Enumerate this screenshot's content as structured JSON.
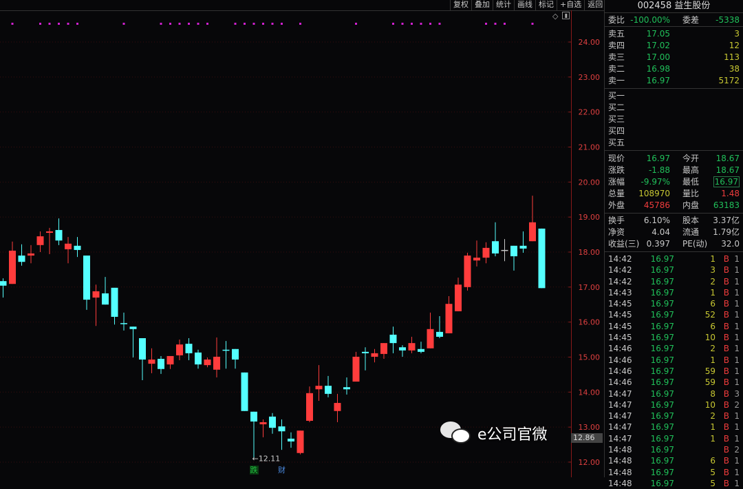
{
  "toolbar": {
    "items": [
      "复权",
      "叠加",
      "统计",
      "画线",
      "标记",
      "+自选",
      "返回"
    ]
  },
  "chart_data": {
    "type": "candlestick",
    "y_ticks": [
      "24.00",
      "23.00",
      "22.00",
      "21.00",
      "20.00",
      "19.00",
      "18.00",
      "17.00",
      "16.00",
      "15.00",
      "14.00",
      "13.00",
      "12.00"
    ],
    "ylim": [
      12,
      24
    ],
    "grid": true,
    "colors": {
      "up": "#ff3c3c",
      "down": "#54ffff",
      "flat": "#c8c8c8",
      "marker": "#d020d0",
      "axis": "#8a1a1a"
    },
    "candles": [
      [
        17.17,
        17.25,
        16.7,
        17.04
      ],
      [
        17.09,
        18.3,
        17.09,
        18.04
      ],
      [
        17.9,
        18.22,
        17.61,
        17.72
      ],
      [
        17.9,
        18.2,
        17.68,
        17.96
      ],
      [
        18.2,
        18.59,
        18.0,
        18.45
      ],
      [
        18.55,
        18.69,
        17.94,
        18.59
      ],
      [
        18.63,
        18.96,
        18.2,
        18.33
      ],
      [
        18.08,
        18.43,
        17.68,
        18.24
      ],
      [
        18.18,
        18.43,
        17.86,
        18.06
      ],
      [
        17.9,
        17.9,
        16.35,
        16.64
      ],
      [
        16.7,
        17.07,
        15.89,
        16.88
      ],
      [
        16.82,
        17.29,
        16.5,
        16.5
      ],
      [
        16.98,
        16.98,
        15.93,
        16.15
      ],
      [
        15.97,
        16.27,
        15.76,
        15.96
      ],
      [
        15.87,
        15.87,
        14.99,
        15.8
      ],
      [
        15.54,
        15.54,
        14.34,
        14.93
      ],
      [
        14.81,
        15.25,
        14.54,
        14.93
      ],
      [
        14.95,
        15.03,
        14.52,
        14.66
      ],
      [
        14.79,
        15.03,
        14.66,
        15.03
      ],
      [
        15.05,
        15.5,
        14.91,
        15.36
      ],
      [
        15.38,
        15.54,
        14.91,
        15.11
      ],
      [
        15.13,
        15.21,
        14.67,
        14.79
      ],
      [
        14.77,
        14.99,
        14.71,
        14.93
      ],
      [
        14.64,
        15.56,
        14.42,
        15.01
      ],
      [
        15.21,
        15.46,
        14.67,
        15.2
      ],
      [
        15.23,
        15.23,
        14.67,
        14.93
      ],
      [
        14.56,
        14.56,
        13.46,
        13.46
      ],
      [
        13.44,
        13.44,
        12.11,
        13.16
      ],
      [
        13.08,
        13.22,
        12.71,
        13.14
      ],
      [
        13.3,
        13.4,
        12.81,
        12.98
      ],
      [
        13.02,
        13.22,
        12.35,
        12.88
      ],
      [
        12.67,
        12.85,
        12.41,
        12.59
      ],
      [
        12.26,
        12.9,
        12.22,
        12.9
      ],
      [
        13.18,
        14.16,
        13.14,
        13.97
      ],
      [
        14.08,
        14.77,
        13.75,
        14.18
      ],
      [
        14.18,
        14.46,
        13.85,
        13.95
      ],
      [
        13.46,
        13.95,
        13.14,
        13.69
      ],
      [
        14.14,
        14.42,
        13.93,
        14.08
      ],
      [
        14.3,
        15.15,
        14.3,
        15.01
      ],
      [
        15.15,
        15.28,
        14.62,
        15.11
      ],
      [
        15.01,
        15.23,
        14.85,
        15.11
      ],
      [
        15.09,
        15.4,
        14.95,
        15.4
      ],
      [
        15.64,
        15.87,
        15.11,
        15.4
      ],
      [
        15.28,
        15.34,
        15.01,
        15.19
      ],
      [
        15.19,
        15.58,
        15.11,
        15.4
      ],
      [
        15.23,
        15.44,
        15.11,
        15.15
      ],
      [
        15.25,
        16.27,
        15.25,
        15.8
      ],
      [
        15.72,
        16.17,
        15.54,
        15.58
      ],
      [
        15.68,
        16.74,
        15.68,
        16.52
      ],
      [
        16.31,
        17.27,
        16.31,
        17.07
      ],
      [
        17.0,
        17.98,
        16.9,
        17.9
      ],
      [
        17.76,
        18.33,
        17.59,
        17.84
      ],
      [
        17.84,
        18.28,
        17.68,
        18.12
      ],
      [
        18.31,
        18.85,
        17.88,
        17.96
      ],
      [
        18.06,
        18.37,
        17.74,
        18.06
      ],
      [
        18.18,
        18.18,
        17.47,
        17.88
      ],
      [
        18.18,
        18.59,
        17.98,
        18.1
      ],
      [
        18.31,
        19.61,
        18.31,
        18.85
      ],
      [
        18.67,
        18.67,
        16.97,
        16.97
      ]
    ],
    "marker_candles": [
      1,
      4,
      5,
      6,
      7,
      8,
      13,
      17,
      18,
      19,
      20,
      21,
      22,
      25,
      26,
      27,
      28,
      29,
      30,
      32,
      38,
      42,
      43,
      44,
      45,
      46,
      47,
      52,
      53,
      54,
      57
    ],
    "low_annotation": "←12.11",
    "last_price_tag": "12.86",
    "flags": [
      {
        "text": "跌",
        "candle": 27,
        "color": "#20c040",
        "bg": "#0b3a12"
      },
      {
        "text": "财",
        "candle": 30,
        "color": "#4a8ae0",
        "bg": "transparent"
      }
    ]
  },
  "panel": {
    "code": "002458",
    "name": "益生股份",
    "weibi": {
      "label": "委比",
      "value": "-100.00%",
      "diff_label": "委差",
      "diff": "-5338"
    },
    "asks": [
      {
        "label": "卖五",
        "price": "17.05",
        "vol": "3"
      },
      {
        "label": "卖四",
        "price": "17.02",
        "vol": "12"
      },
      {
        "label": "卖三",
        "price": "17.00",
        "vol": "113"
      },
      {
        "label": "卖二",
        "price": "16.98",
        "vol": "38"
      },
      {
        "label": "卖一",
        "price": "16.97",
        "vol": "5172"
      }
    ],
    "bids": [
      {
        "label": "买一"
      },
      {
        "label": "买二"
      },
      {
        "label": "买三"
      },
      {
        "label": "买四"
      },
      {
        "label": "买五"
      }
    ],
    "quote": [
      {
        "l1": "现价",
        "v1": "16.97",
        "c1": "g",
        "l2": "今开",
        "v2": "18.67",
        "c2": "g"
      },
      {
        "l1": "涨跌",
        "v1": "-1.88",
        "c1": "g",
        "l2": "最高",
        "v2": "18.67",
        "c2": "g"
      },
      {
        "l1": "涨幅",
        "v1": "-9.97%",
        "c1": "g",
        "l2": "最低",
        "v2": "16.97",
        "c2": "g"
      },
      {
        "l1": "总量",
        "v1": "108970",
        "c1": "y",
        "l2": "量比",
        "v2": "1.48",
        "c2": "r"
      },
      {
        "l1": "外盘",
        "v1": "45786",
        "c1": "r",
        "l2": "内盘",
        "v2": "63183",
        "c2": "g"
      }
    ],
    "fundamentals": [
      {
        "l1": "换手",
        "v1": "6.10%",
        "l2": "股本",
        "v2": "3.37亿"
      },
      {
        "l1": "净资",
        "v1": "4.04",
        "l2": "流通",
        "v2": "1.79亿"
      },
      {
        "l1": "收益(三)",
        "v1": "0.397",
        "l2": "PE(动)",
        "v2": "32.0"
      }
    ],
    "trades": [
      [
        "14:42",
        "16.97",
        "1",
        "B",
        "1"
      ],
      [
        "14:42",
        "16.97",
        "3",
        "B",
        "1"
      ],
      [
        "14:42",
        "16.97",
        "2",
        "B",
        "1"
      ],
      [
        "14:43",
        "16.97",
        "1",
        "B",
        "1"
      ],
      [
        "14:45",
        "16.97",
        "6",
        "B",
        "1"
      ],
      [
        "14:45",
        "16.97",
        "52",
        "B",
        "1"
      ],
      [
        "14:45",
        "16.97",
        "6",
        "B",
        "1"
      ],
      [
        "14:45",
        "16.97",
        "10",
        "B",
        "1"
      ],
      [
        "14:46",
        "16.97",
        "2",
        "B",
        "1"
      ],
      [
        "14:46",
        "16.97",
        "1",
        "B",
        "1"
      ],
      [
        "14:46",
        "16.97",
        "59",
        "B",
        "1"
      ],
      [
        "14:46",
        "16.97",
        "59",
        "B",
        "1"
      ],
      [
        "14:47",
        "16.97",
        "8",
        "B",
        "3"
      ],
      [
        "14:47",
        "16.97",
        "10",
        "B",
        "2"
      ],
      [
        "14:47",
        "16.97",
        "2",
        "B",
        "1"
      ],
      [
        "14:47",
        "16.97",
        "1",
        "B",
        "1"
      ],
      [
        "14:47",
        "16.97",
        "1",
        "B",
        "1"
      ],
      [
        "14:48",
        "16.97",
        "",
        "B",
        "2"
      ],
      [
        "14:48",
        "16.97",
        "6",
        "B",
        "1"
      ],
      [
        "14:48",
        "16.97",
        "5",
        "B",
        "1"
      ],
      [
        "14:48",
        "16.97",
        "5",
        "B",
        "1"
      ]
    ]
  },
  "watermark": "e公司官微"
}
